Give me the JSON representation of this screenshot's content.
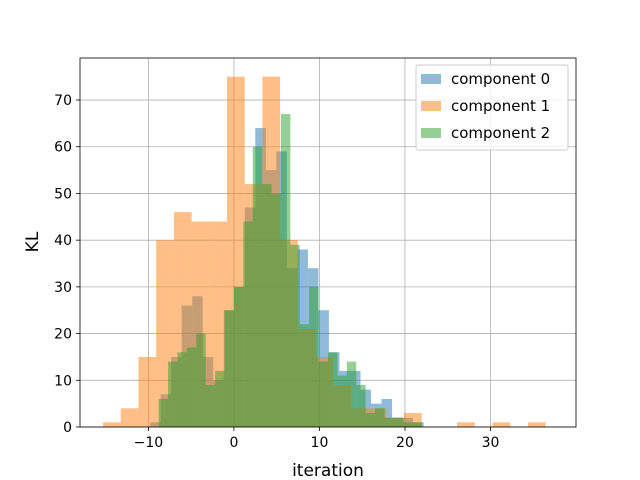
{
  "chart_data": {
    "type": "bar",
    "subtype": "overlaid-histogram",
    "xlabel": "iteration",
    "ylabel": "KL",
    "xlim": [
      -18,
      40
    ],
    "ylim": [
      0,
      79
    ],
    "xticks": [
      -10,
      0,
      10,
      20,
      30
    ],
    "yticks": [
      0,
      10,
      20,
      30,
      40,
      50,
      60,
      70
    ],
    "grid": true,
    "legend_position": "top-right",
    "series": [
      {
        "name": "component 0",
        "color": "#1f77b4",
        "opacity": 0.5,
        "bin_width": 1.23,
        "bins": [
          {
            "x": -9.8,
            "y": 1
          },
          {
            "x": -8.57,
            "y": 7
          },
          {
            "x": -7.34,
            "y": 15
          },
          {
            "x": -6.11,
            "y": 26
          },
          {
            "x": -4.88,
            "y": 28
          },
          {
            "x": -3.65,
            "y": 15
          },
          {
            "x": -2.42,
            "y": 10
          },
          {
            "x": -1.19,
            "y": 25
          },
          {
            "x": 0.04,
            "y": 30
          },
          {
            "x": 1.27,
            "y": 47
          },
          {
            "x": 2.5,
            "y": 64
          },
          {
            "x": 3.73,
            "y": 55
          },
          {
            "x": 4.96,
            "y": 59
          },
          {
            "x": 6.19,
            "y": 34
          },
          {
            "x": 7.42,
            "y": 38
          },
          {
            "x": 8.65,
            "y": 34
          },
          {
            "x": 9.88,
            "y": 25
          },
          {
            "x": 11.11,
            "y": 16
          },
          {
            "x": 12.34,
            "y": 12
          },
          {
            "x": 13.57,
            "y": 12
          },
          {
            "x": 14.8,
            "y": 8
          },
          {
            "x": 16.03,
            "y": 5
          },
          {
            "x": 17.26,
            "y": 6
          },
          {
            "x": 18.49,
            "y": 2
          },
          {
            "x": 19.72,
            "y": 2
          },
          {
            "x": 20.95,
            "y": 1
          }
        ]
      },
      {
        "name": "component 1",
        "color": "#ff7f0e",
        "opacity": 0.5,
        "bin_width": 2.07,
        "bins": [
          {
            "x": -15.3,
            "y": 1
          },
          {
            "x": -13.23,
            "y": 4
          },
          {
            "x": -11.16,
            "y": 15
          },
          {
            "x": -9.09,
            "y": 40
          },
          {
            "x": -7.02,
            "y": 46
          },
          {
            "x": -4.95,
            "y": 44
          },
          {
            "x": -2.88,
            "y": 44
          },
          {
            "x": -0.81,
            "y": 75
          },
          {
            "x": 1.26,
            "y": 52
          },
          {
            "x": 3.33,
            "y": 75
          },
          {
            "x": 5.4,
            "y": 40
          },
          {
            "x": 7.47,
            "y": 21
          },
          {
            "x": 9.54,
            "y": 15
          },
          {
            "x": 11.61,
            "y": 9
          },
          {
            "x": 13.68,
            "y": 4
          },
          {
            "x": 15.75,
            "y": 4
          },
          {
            "x": 17.82,
            "y": 2
          },
          {
            "x": 19.89,
            "y": 3
          },
          {
            "x": 21.96,
            "y": 0
          },
          {
            "x": 24.03,
            "y": 0
          },
          {
            "x": 26.1,
            "y": 1
          },
          {
            "x": 28.17,
            "y": 0
          },
          {
            "x": 30.24,
            "y": 1
          },
          {
            "x": 32.31,
            "y": 0
          },
          {
            "x": 34.38,
            "y": 1
          }
        ]
      },
      {
        "name": "component 2",
        "color": "#2ca02c",
        "opacity": 0.5,
        "bin_width": 1.1,
        "bins": [
          {
            "x": -8.8,
            "y": 6
          },
          {
            "x": -7.7,
            "y": 14
          },
          {
            "x": -6.6,
            "y": 16
          },
          {
            "x": -5.5,
            "y": 17
          },
          {
            "x": -4.4,
            "y": 20
          },
          {
            "x": -3.3,
            "y": 9
          },
          {
            "x": -2.2,
            "y": 12
          },
          {
            "x": -1.1,
            "y": 25
          },
          {
            "x": 0.0,
            "y": 30
          },
          {
            "x": 1.1,
            "y": 44
          },
          {
            "x": 2.2,
            "y": 60
          },
          {
            "x": 3.3,
            "y": 52
          },
          {
            "x": 4.4,
            "y": 50
          },
          {
            "x": 5.5,
            "y": 67
          },
          {
            "x": 6.6,
            "y": 39
          },
          {
            "x": 7.7,
            "y": 22
          },
          {
            "x": 8.8,
            "y": 30
          },
          {
            "x": 9.9,
            "y": 14
          },
          {
            "x": 11.0,
            "y": 16
          },
          {
            "x": 12.1,
            "y": 11
          },
          {
            "x": 13.2,
            "y": 14
          },
          {
            "x": 14.3,
            "y": 9
          },
          {
            "x": 15.4,
            "y": 3
          },
          {
            "x": 16.5,
            "y": 4
          },
          {
            "x": 17.6,
            "y": 2
          },
          {
            "x": 18.7,
            "y": 2
          },
          {
            "x": 19.8,
            "y": 1
          },
          {
            "x": 20.9,
            "y": 1
          }
        ]
      }
    ]
  }
}
